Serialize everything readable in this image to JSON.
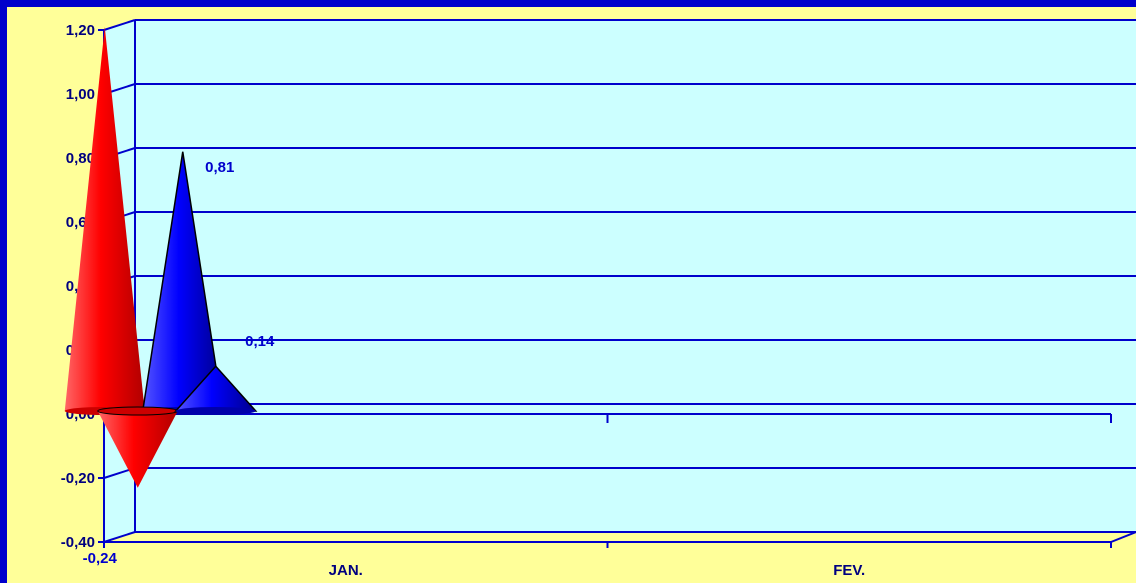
{
  "chart_data": {
    "type": "bar",
    "style": "3d-cone",
    "categories": [
      "JAN.",
      "FEV."
    ],
    "series": [
      {
        "values": [
          1.2,
          -0.24
        ],
        "color": "#ff0000"
      },
      {
        "values": [
          0.81,
          0.14
        ],
        "color": "#0000ff"
      }
    ],
    "data_labels": [
      [
        "1,20",
        "-0,24"
      ],
      [
        "0,81",
        "0,14"
      ]
    ],
    "y_ticks": [
      "-0,40",
      "-0,20",
      "0,00",
      "0,20",
      "0,40",
      "0,60",
      "0,80",
      "1,00",
      "1,20"
    ],
    "ylim": [
      -0.4,
      1.2
    ],
    "grid": true,
    "legend": "none",
    "colors": {
      "border": "#0000cc",
      "background": "#ffff99",
      "plot_wall": "#ccffff",
      "grid": "#0000cc",
      "text": "#000080"
    }
  }
}
